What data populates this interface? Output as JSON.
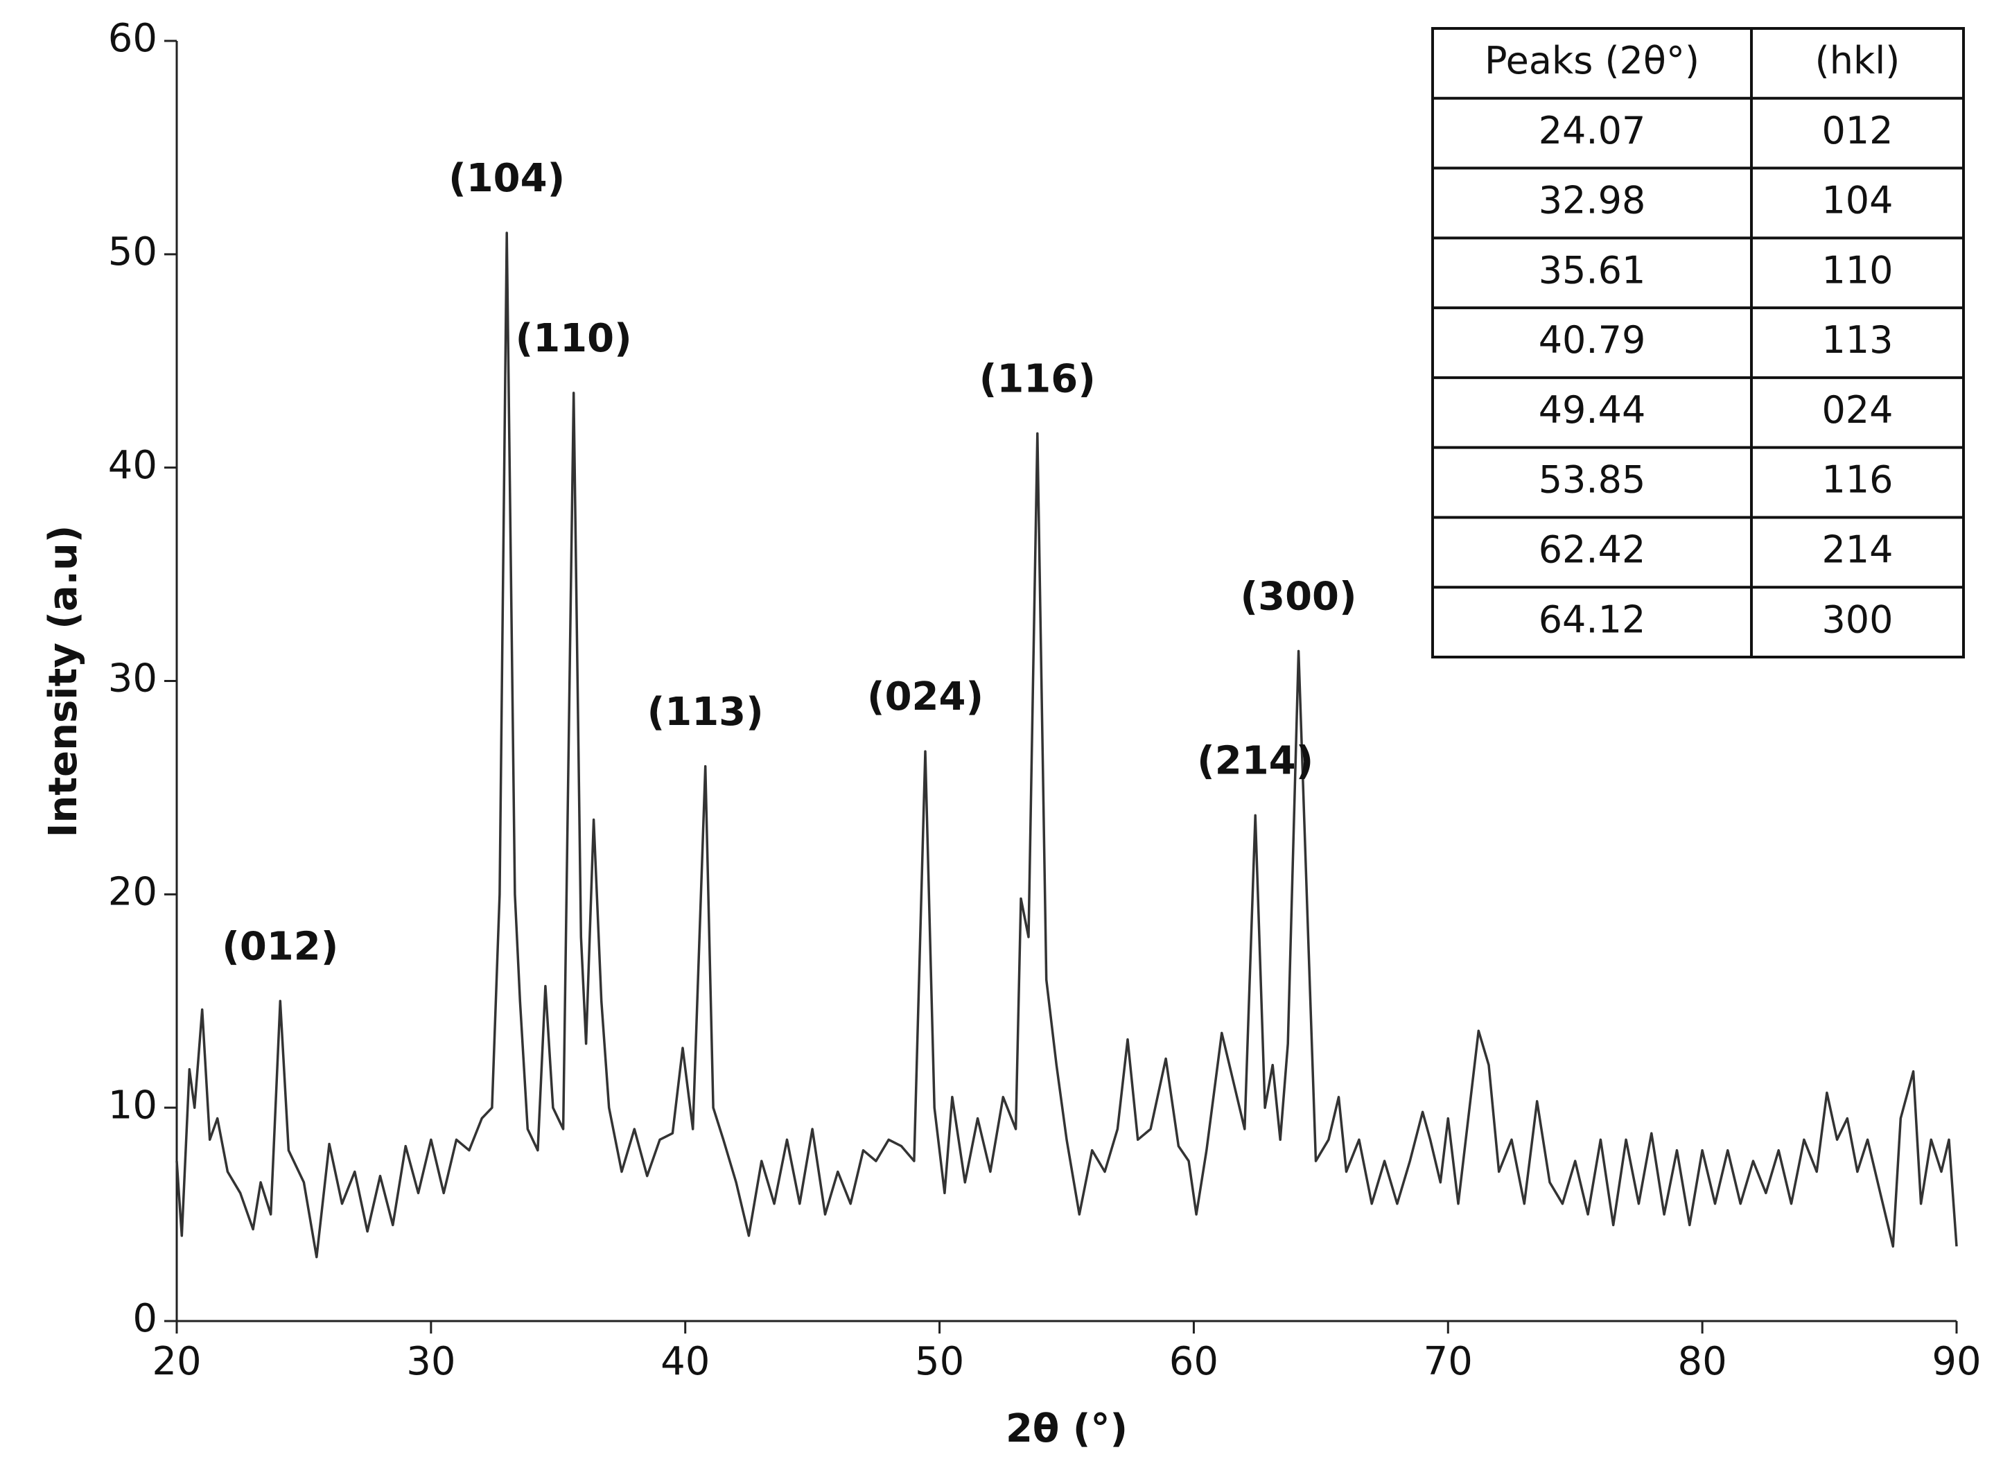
{
  "chart_data": {
    "type": "line",
    "x_label": "2θ (°)",
    "y_label": "Intensity (a.u)",
    "x": [
      20,
      20.2,
      20.5,
      20.7,
      21.0,
      21.3,
      21.6,
      22.0,
      22.5,
      23.0,
      23.3,
      23.7,
      24.07,
      24.4,
      25.0,
      25.5,
      26.0,
      26.5,
      27.0,
      27.5,
      28.0,
      28.5,
      29.0,
      29.5,
      30.0,
      30.5,
      31.0,
      31.5,
      32.0,
      32.4,
      32.7,
      32.98,
      33.3,
      33.5,
      33.8,
      34.2,
      34.5,
      34.8,
      35.2,
      35.61,
      35.9,
      36.1,
      36.4,
      36.7,
      37.0,
      37.5,
      38.0,
      38.5,
      39.0,
      39.5,
      39.9,
      40.3,
      40.79,
      41.1,
      41.5,
      42.0,
      42.5,
      43.0,
      43.5,
      44.0,
      44.5,
      45.0,
      45.5,
      46.0,
      46.5,
      47.0,
      47.5,
      48.0,
      48.5,
      49.0,
      49.44,
      49.8,
      50.2,
      50.5,
      51.0,
      51.5,
      52.0,
      52.5,
      53.0,
      53.2,
      53.5,
      53.85,
      54.2,
      54.6,
      55.0,
      55.5,
      56.0,
      56.5,
      57.0,
      57.4,
      57.8,
      58.3,
      58.9,
      59.4,
      59.8,
      60.1,
      60.5,
      61.1,
      61.5,
      62.0,
      62.42,
      62.8,
      63.1,
      63.4,
      63.7,
      64.12,
      64.5,
      64.8,
      65.3,
      65.7,
      66.0,
      66.5,
      67.0,
      67.5,
      68.0,
      68.5,
      69.0,
      69.3,
      69.7,
      70.0,
      70.4,
      71.2,
      71.6,
      72.0,
      72.5,
      73.0,
      73.5,
      74.0,
      74.5,
      75.0,
      75.5,
      76.0,
      76.5,
      77.0,
      77.5,
      78.0,
      78.5,
      79.0,
      79.5,
      80.0,
      80.5,
      81.0,
      81.5,
      82.0,
      82.5,
      83.0,
      83.5,
      84.0,
      84.5,
      84.9,
      85.3,
      85.7,
      86.1,
      86.5,
      87.0,
      87.5,
      87.8,
      88.3,
      88.6,
      89.0,
      89.4,
      89.7,
      90.0
    ],
    "values": [
      7.5,
      4,
      11.8,
      10,
      14.6,
      8.5,
      9.5,
      7,
      6,
      4.3,
      6.5,
      5,
      15,
      8,
      6.5,
      3,
      8.3,
      5.5,
      7,
      4.2,
      6.8,
      4.5,
      8.2,
      6,
      8.5,
      6,
      8.5,
      8,
      9.5,
      10,
      20,
      51,
      20,
      15,
      9,
      8,
      15.7,
      10,
      9,
      43.5,
      18,
      13,
      23.5,
      15,
      10,
      7,
      9,
      6.8,
      8.5,
      8.8,
      12.8,
      9,
      26,
      10,
      8.5,
      6.5,
      4,
      7.5,
      5.5,
      8.5,
      5.5,
      9,
      5,
      7,
      5.5,
      8,
      7.5,
      8.5,
      8.2,
      7.5,
      26.7,
      10,
      6,
      10.5,
      6.5,
      9.5,
      7,
      10.5,
      9,
      19.8,
      18,
      41.6,
      16,
      12,
      8.5,
      5,
      8,
      7,
      9,
      13.2,
      8.5,
      9,
      12.3,
      8.2,
      7.5,
      5,
      8,
      13.5,
      11.5,
      9,
      23.7,
      10,
      12,
      8.5,
      13,
      31.4,
      18,
      7.5,
      8.5,
      10.5,
      7,
      8.5,
      5.5,
      7.5,
      5.5,
      7.5,
      9.8,
      8.5,
      6.5,
      9.5,
      5.5,
      13.6,
      12,
      7,
      8.5,
      5.5,
      10.3,
      6.5,
      5.5,
      7.5,
      5,
      8.5,
      4.5,
      8.5,
      5.5,
      8.8,
      5,
      8,
      4.5,
      8,
      5.5,
      8,
      5.5,
      7.5,
      6,
      8,
      5.5,
      8.5,
      7,
      10.7,
      8.5,
      9.5,
      7,
      8.5,
      6,
      3.5,
      9.5,
      11.7,
      5.5,
      8.5,
      7,
      8.5,
      3.5
    ],
    "color": "#333333",
    "xlim": [
      20,
      90
    ],
    "xticks": [
      20,
      30,
      40,
      50,
      60,
      70,
      80,
      90
    ],
    "ylim": [
      0,
      60
    ],
    "yticks": [
      0,
      10,
      20,
      30,
      40,
      50,
      60
    ],
    "annotations": [
      {
        "text": "(012)",
        "x": 24.07
      },
      {
        "text": "(104)",
        "x": 32.98
      },
      {
        "text": "(110)",
        "x": 35.61
      },
      {
        "text": "(113)",
        "x": 40.79
      },
      {
        "text": "(024)",
        "x": 49.44
      },
      {
        "text": "(116)",
        "x": 53.85
      },
      {
        "text": "(214)",
        "x": 62.42
      },
      {
        "text": "(300)",
        "x": 64.12
      }
    ]
  },
  "table": {
    "header": [
      "Peaks (2θ°)",
      "(hkl)"
    ],
    "rows": [
      [
        24.07,
        "012"
      ],
      [
        32.98,
        "104"
      ],
      [
        35.61,
        "110"
      ],
      [
        40.79,
        "113"
      ],
      [
        49.44,
        "024"
      ],
      [
        53.85,
        "116"
      ],
      [
        62.42,
        "214"
      ],
      [
        64.12,
        "300"
      ]
    ]
  }
}
